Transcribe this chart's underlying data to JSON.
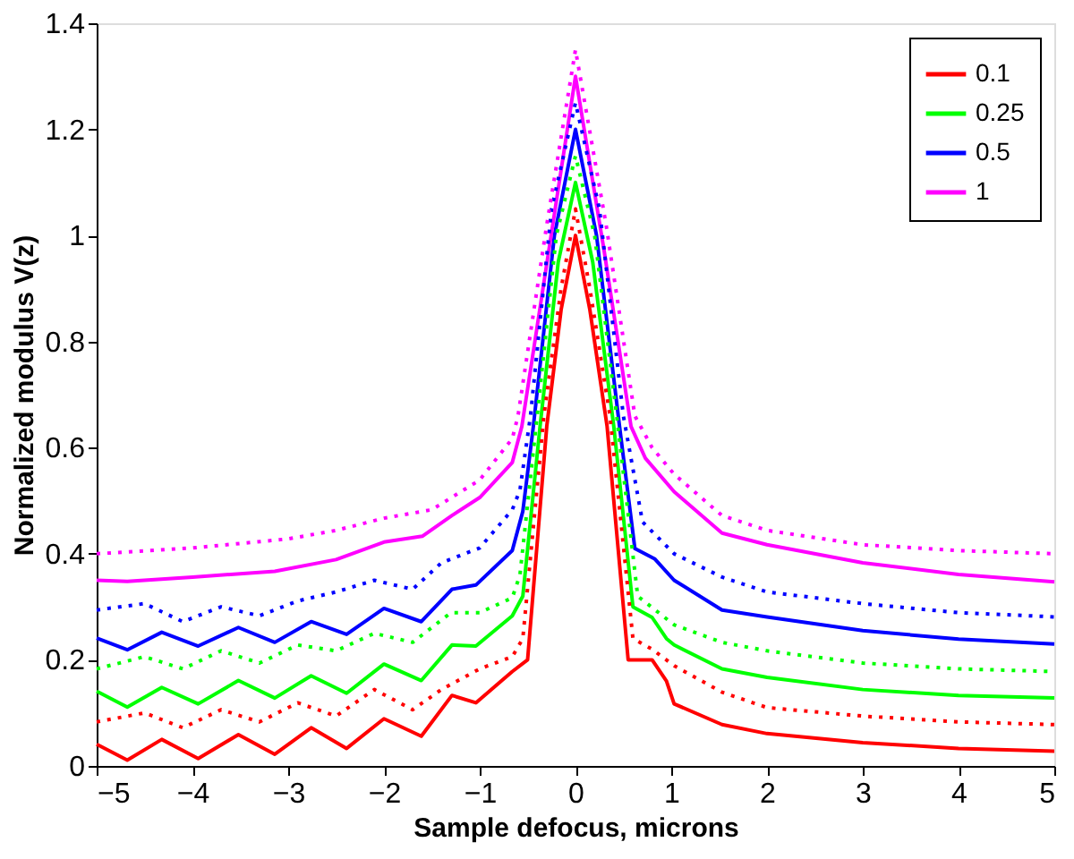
{
  "chart_data": {
    "type": "line",
    "xlabel": "Sample defocus, microns",
    "ylabel": "Normalized modulus V(z)",
    "xlim": [
      -5,
      5
    ],
    "xticks": [
      -5,
      -4,
      -3,
      -2,
      -1,
      0,
      1,
      2,
      3,
      4,
      5
    ],
    "ylim": [
      0,
      1.4
    ],
    "yticks": [
      0,
      0.2,
      0.4,
      0.6,
      0.8,
      1,
      1.2,
      1.4
    ],
    "legend": "top right",
    "grid": false,
    "marker": "none",
    "series": [
      {
        "name": "0.1",
        "color": "#ff0000",
        "line_style": "solid",
        "x": [
          -5,
          -4.68,
          -4.32,
          -3.94,
          -3.52,
          -3.14,
          -2.76,
          -2.39,
          -2.0,
          -1.61,
          -1.29,
          -1.04,
          -0.66,
          -0.5,
          -0.3,
          -0.15,
          0,
          0.15,
          0.33,
          0.55,
          0.8,
          0.95,
          1.03,
          1.53,
          2,
          3,
          4,
          5
        ],
        "values": [
          0.041,
          0.011,
          0.05,
          0.014,
          0.059,
          0.022,
          0.072,
          0.033,
          0.089,
          0.056,
          0.133,
          0.119,
          0.178,
          0.2,
          0.64,
          0.86,
          1.0,
          0.86,
          0.64,
          0.2,
          0.2,
          0.16,
          0.117,
          0.078,
          0.061,
          0.044,
          0.033,
          0.028
        ]
      },
      {
        "name": "0.25",
        "color": "#00ff00",
        "line_style": "solid",
        "x": [
          -5,
          -4.68,
          -4.32,
          -3.94,
          -3.52,
          -3.14,
          -2.76,
          -2.39,
          -2.0,
          -1.61,
          -1.29,
          -1.04,
          -0.66,
          -0.55,
          -0.37,
          -0.18,
          0,
          0.18,
          0.4,
          0.6,
          0.8,
          0.95,
          1.03,
          1.53,
          2,
          3,
          4,
          5
        ],
        "values": [
          0.141,
          0.111,
          0.148,
          0.117,
          0.161,
          0.128,
          0.17,
          0.137,
          0.192,
          0.161,
          0.228,
          0.226,
          0.283,
          0.32,
          0.64,
          0.95,
          1.1,
          0.95,
          0.64,
          0.3,
          0.28,
          0.24,
          0.228,
          0.183,
          0.167,
          0.144,
          0.133,
          0.128
        ]
      },
      {
        "name": "0.5",
        "color": "#0000ff",
        "line_style": "solid",
        "x": [
          -5,
          -4.68,
          -4.32,
          -3.94,
          -3.52,
          -3.14,
          -2.76,
          -2.39,
          -2.0,
          -1.61,
          -1.29,
          -1.04,
          -0.66,
          -0.55,
          -0.44,
          -0.22,
          0,
          0.22,
          0.46,
          0.62,
          0.83,
          1.03,
          1.53,
          2,
          3,
          4,
          5
        ],
        "values": [
          0.241,
          0.219,
          0.252,
          0.226,
          0.261,
          0.233,
          0.272,
          0.248,
          0.297,
          0.272,
          0.333,
          0.341,
          0.406,
          0.48,
          0.64,
          1.0,
          1.2,
          1.0,
          0.64,
          0.41,
          0.39,
          0.35,
          0.294,
          0.281,
          0.255,
          0.239,
          0.23
        ]
      },
      {
        "name": "1",
        "color": "#ff00ff",
        "line_style": "solid",
        "x": [
          -5,
          -4.68,
          -4,
          -3.14,
          -2.5,
          -2.0,
          -1.6,
          -1.29,
          -1.0,
          -0.66,
          -0.56,
          -0.28,
          0,
          0.3,
          0.58,
          0.73,
          1.03,
          1.53,
          2,
          3,
          4,
          5
        ],
        "values": [
          0.35,
          0.348,
          0.356,
          0.367,
          0.389,
          0.422,
          0.433,
          0.472,
          0.506,
          0.572,
          0.64,
          0.97,
          1.3,
          0.97,
          0.64,
          0.58,
          0.517,
          0.439,
          0.417,
          0.383,
          0.361,
          0.347
        ]
      },
      {
        "color": "#ff0000",
        "line_style": "dotted",
        "x": [
          -5,
          -4.5,
          -4.1,
          -3.7,
          -3.3,
          -2.9,
          -2.5,
          -2.1,
          -1.7,
          -1.4,
          -1.0,
          -0.66,
          -0.55,
          -0.33,
          -0.15,
          0,
          0.15,
          0.36,
          0.6,
          0.8,
          1.03,
          1.53,
          2,
          3,
          4,
          5
        ],
        "values": [
          0.083,
          0.1,
          0.072,
          0.106,
          0.083,
          0.119,
          0.094,
          0.144,
          0.106,
          0.144,
          0.183,
          0.206,
          0.24,
          0.66,
          0.9,
          1.05,
          0.9,
          0.66,
          0.24,
          0.22,
          0.189,
          0.139,
          0.11,
          0.094,
          0.083,
          0.078
        ]
      },
      {
        "color": "#00ff00",
        "line_style": "dotted",
        "x": [
          -5,
          -4.5,
          -4.1,
          -3.7,
          -3.3,
          -2.9,
          -2.5,
          -2.1,
          -1.7,
          -1.3,
          -1.0,
          -0.66,
          -0.58,
          -0.4,
          -0.2,
          0,
          0.2,
          0.43,
          0.65,
          1.03,
          1.53,
          2,
          3,
          4,
          5
        ],
        "values": [
          0.183,
          0.206,
          0.183,
          0.217,
          0.194,
          0.228,
          0.217,
          0.25,
          0.233,
          0.289,
          0.289,
          0.317,
          0.36,
          0.66,
          1.0,
          1.15,
          1.0,
          0.66,
          0.32,
          0.266,
          0.233,
          0.217,
          0.194,
          0.183,
          0.178
        ]
      },
      {
        "color": "#0000ff",
        "line_style": "dotted",
        "x": [
          -5,
          -4.5,
          -4.1,
          -3.7,
          -3.3,
          -2.9,
          -2.5,
          -2.1,
          -1.7,
          -1.4,
          -1.0,
          -0.66,
          -0.58,
          -0.47,
          -0.25,
          0,
          0.25,
          0.5,
          0.7,
          1.03,
          1.53,
          2,
          3,
          4,
          5
        ],
        "values": [
          0.294,
          0.306,
          0.272,
          0.3,
          0.283,
          0.311,
          0.328,
          0.35,
          0.333,
          0.383,
          0.411,
          0.483,
          0.52,
          0.66,
          1.05,
          1.25,
          1.05,
          0.66,
          0.46,
          0.4,
          0.356,
          0.328,
          0.306,
          0.289,
          0.281
        ]
      },
      {
        "color": "#ff00ff",
        "line_style": "dotted",
        "x": [
          -5,
          -4,
          -3,
          -2.5,
          -2,
          -1.5,
          -1.0,
          -0.66,
          -0.6,
          -0.3,
          0,
          0.32,
          0.62,
          0.8,
          1.03,
          1.53,
          2,
          3,
          4,
          5
        ],
        "values": [
          0.4,
          0.411,
          0.428,
          0.444,
          0.467,
          0.483,
          0.539,
          0.617,
          0.66,
          1.02,
          1.35,
          1.02,
          0.66,
          0.6,
          0.55,
          0.472,
          0.444,
          0.417,
          0.406,
          0.4
        ]
      }
    ]
  }
}
